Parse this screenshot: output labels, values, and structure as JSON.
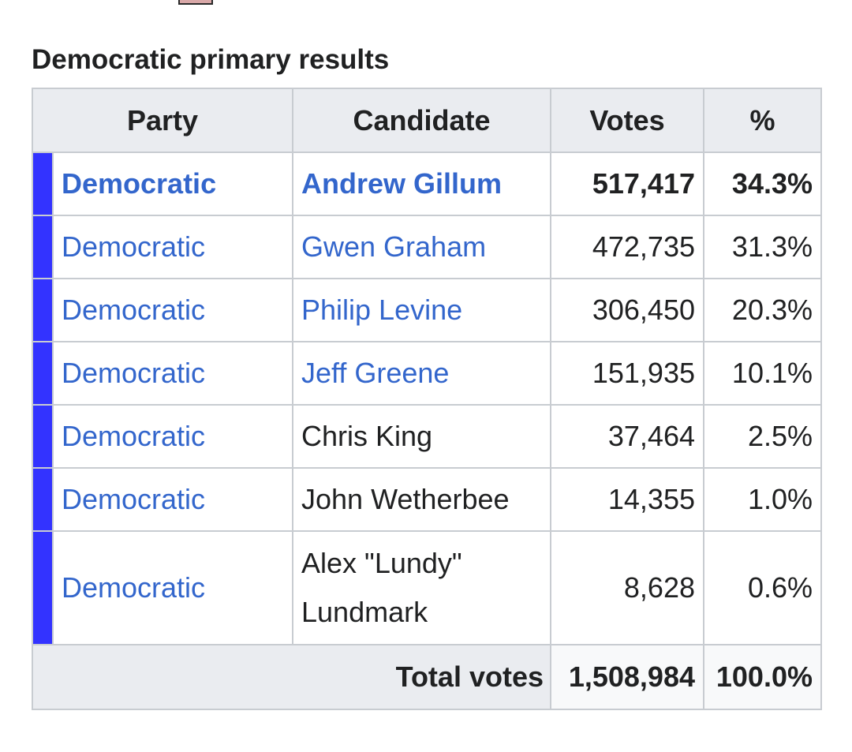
{
  "caption": "Democratic primary results",
  "colors": {
    "party_bar": "#3333ff",
    "link": "#3366cc",
    "header_bg": "#eaecf0",
    "border": "#c8ccd1"
  },
  "headers": {
    "party": "Party",
    "candidate": "Candidate",
    "votes": "Votes",
    "percent": "%"
  },
  "rows": [
    {
      "party": "Democratic",
      "candidate": "Andrew Gillum",
      "votes": "517,417",
      "percent": "34.3%"
    },
    {
      "party": "Democratic",
      "candidate": "Gwen Graham",
      "votes": "472,735",
      "percent": "31.3%"
    },
    {
      "party": "Democratic",
      "candidate": "Philip Levine",
      "votes": "306,450",
      "percent": "20.3%"
    },
    {
      "party": "Democratic",
      "candidate": "Jeff Greene",
      "votes": "151,935",
      "percent": "10.1%"
    },
    {
      "party": "Democratic",
      "candidate": "Chris King",
      "votes": "37,464",
      "percent": "2.5%"
    },
    {
      "party": "Democratic",
      "candidate": "John Wetherbee",
      "votes": "14,355",
      "percent": "1.0%"
    },
    {
      "party": "Democratic",
      "candidate_line1": "Alex \"Lundy\"",
      "candidate_line2": "Lundmark",
      "votes": "8,628",
      "percent": "0.6%"
    }
  ],
  "total": {
    "label": "Total votes",
    "votes": "1,508,984",
    "percent": "100.0%"
  }
}
